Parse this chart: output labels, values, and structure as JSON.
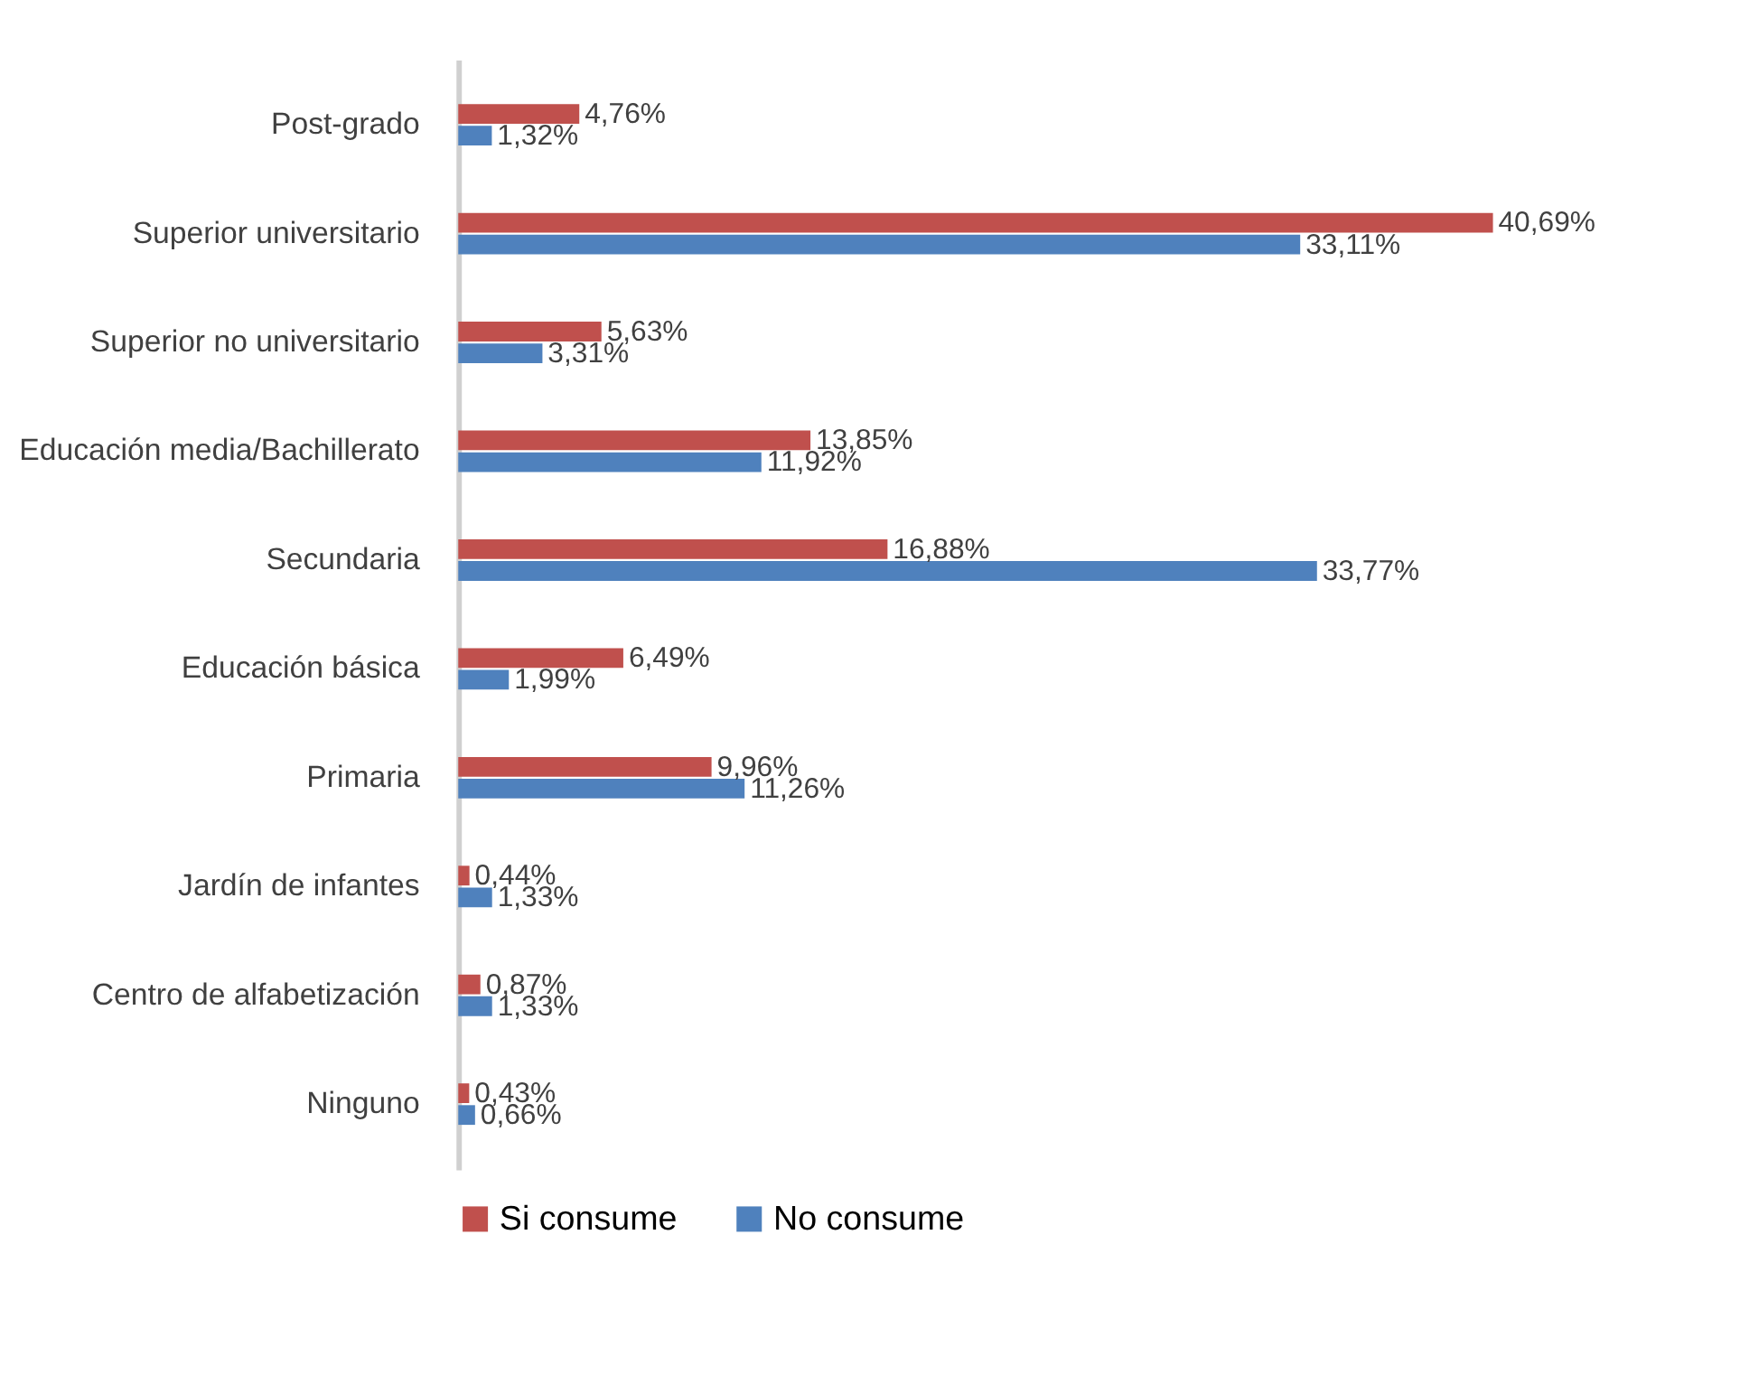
{
  "chart_data": {
    "type": "bar",
    "orientation": "horizontal",
    "categories": [
      "Post-grado",
      "Superior universitario",
      "Superior no universitario",
      "Educación media/Bachillerato",
      "Secundaria",
      "Educación básica",
      "Primaria",
      "Jardín de infantes",
      "Centro de alfabetización",
      "Ninguno"
    ],
    "series": [
      {
        "name": "Si consume",
        "color": "#c0504d",
        "values": [
          4.76,
          40.69,
          5.63,
          13.85,
          16.88,
          6.49,
          9.96,
          0.44,
          0.87,
          0.43
        ],
        "value_labels": [
          "4,76%",
          "40,69%",
          "5,63%",
          "13,85%",
          "16,88%",
          "6,49%",
          "9,96%",
          "0,44%",
          "0,87%",
          "0,43%"
        ]
      },
      {
        "name": "No consume",
        "color": "#4f81bd",
        "values": [
          1.32,
          33.11,
          3.31,
          11.92,
          33.77,
          1.99,
          11.26,
          1.33,
          1.33,
          0.66
        ],
        "value_labels": [
          "1,32%",
          "33,11%",
          "3,31%",
          "11,92%",
          "33,77%",
          "1,99%",
          "11,26%",
          "1,33%",
          "1,33%",
          "0,66%"
        ]
      }
    ],
    "legend": "bottom"
  }
}
